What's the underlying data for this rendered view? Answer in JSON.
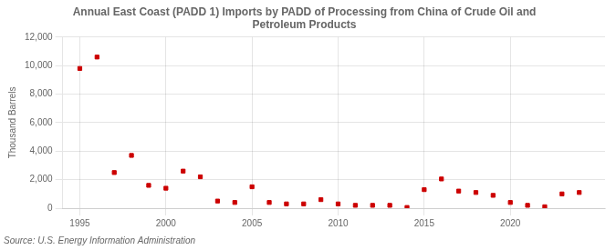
{
  "chart_data": {
    "type": "scatter",
    "title": "Annual East Coast (PADD 1) Imports by PADD of Processing from China of Crude Oil and\nPetroleum Products",
    "ylabel": "Thousand Barrels",
    "source": "Source: U.S. Energy Information Administration",
    "x": [
      1995,
      1996,
      1997,
      1998,
      1999,
      2000,
      2001,
      2002,
      2003,
      2004,
      2005,
      2006,
      2007,
      2008,
      2009,
      2010,
      2011,
      2012,
      2013,
      2014,
      2015,
      2016,
      2017,
      2018,
      2019,
      2020,
      2021,
      2022,
      2023,
      2024
    ],
    "values": [
      9800,
      10600,
      2500,
      3700,
      1600,
      1400,
      2600,
      2200,
      500,
      400,
      1500,
      400,
      300,
      300,
      600,
      300,
      200,
      200,
      200,
      50,
      1300,
      2050,
      1200,
      1100,
      900,
      400,
      200,
      100,
      1000,
      1100
    ],
    "color": "#cc0000",
    "marker": "square",
    "xlim": [
      1994.0,
      2025.5
    ],
    "xticks": [
      1995,
      2000,
      2005,
      2010,
      2015,
      2020
    ],
    "ylim": [
      0,
      12000
    ],
    "yticks": [
      0,
      {
        "value": 2000,
        "label": "2,000"
      },
      {
        "value": 4000,
        "label": "4,000"
      },
      {
        "value": 6000,
        "label": "6,000"
      },
      {
        "value": 8000,
        "label": "8,000"
      },
      {
        "value": 10000,
        "label": "10,000"
      },
      {
        "value": 12000,
        "label": "12,000"
      }
    ],
    "grid": true
  }
}
